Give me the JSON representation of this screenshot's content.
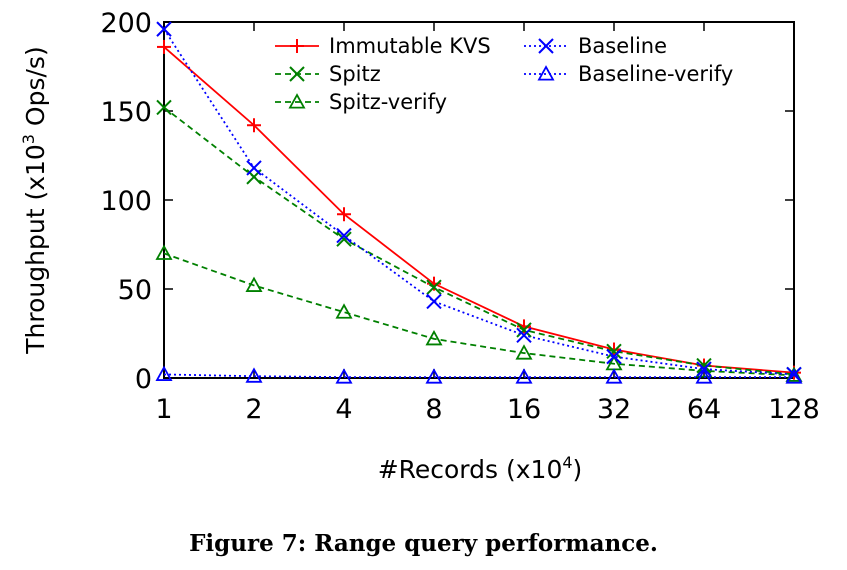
{
  "caption": "Figure 7: Range query performance.",
  "chart_data": {
    "type": "line",
    "title": "",
    "xlabel": "#Records (x10",
    "xlabel_sup": "4",
    "xlabel_end": ")",
    "ylabel": "Throughput (x10",
    "ylabel_sup": "3",
    "ylabel_end": " Ops/s)",
    "x_scale": "log2",
    "categories": [
      "1",
      "2",
      "4",
      "8",
      "16",
      "32",
      "64",
      "128"
    ],
    "x": [
      1,
      2,
      4,
      8,
      16,
      32,
      64,
      128
    ],
    "ylim": [
      0,
      200
    ],
    "yticks": [
      "0",
      "50",
      "100",
      "150",
      "200"
    ],
    "ytick_values": [
      0,
      50,
      100,
      150,
      200
    ],
    "legend_position": "top",
    "series": [
      {
        "name": "Immutable KVS",
        "color": "#ff0000",
        "marker": "plus",
        "dash": "solid",
        "values": [
          186,
          142,
          92,
          53,
          29,
          16,
          7,
          3
        ]
      },
      {
        "name": "Spitz",
        "color": "#008000",
        "marker": "cross",
        "dash": "dashed",
        "values": [
          152,
          113,
          78,
          51,
          27,
          15,
          7,
          2
        ]
      },
      {
        "name": "Spitz-verify",
        "color": "#008000",
        "marker": "triangle",
        "dash": "dashed",
        "values": [
          70,
          52,
          37,
          22,
          14,
          8,
          4,
          1.5
        ]
      },
      {
        "name": "Baseline",
        "color": "#0000ff",
        "marker": "cross",
        "dash": "dotted",
        "values": [
          196,
          118,
          80,
          43,
          24,
          12,
          5,
          2
        ]
      },
      {
        "name": "Baseline-verify",
        "color": "#0000ff",
        "marker": "triangle",
        "dash": "dotted",
        "values": [
          2,
          1,
          0.5,
          0.5,
          0.5,
          0.5,
          0.5,
          0.5
        ]
      }
    ]
  }
}
